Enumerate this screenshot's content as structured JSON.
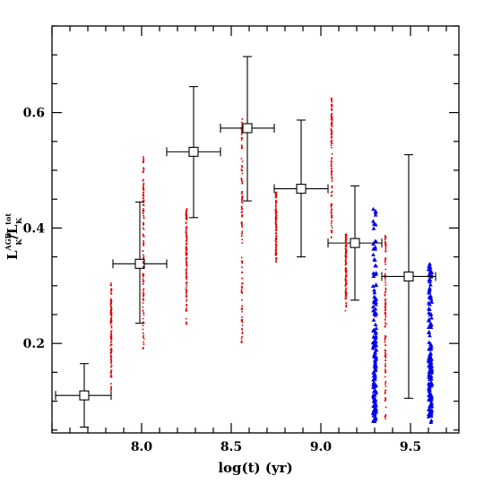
{
  "chart_data": {
    "type": "scatter",
    "title": "",
    "xlabel": "log(t) (yr)",
    "ylabel_main": "L",
    "ylabel_sub": "K",
    "ylabel_num_sup": "AGB",
    "ylabel_den_sup": "tot",
    "xlim": [
      7.5,
      9.77
    ],
    "ylim": [
      0.045,
      0.75
    ],
    "x_ticks": [
      {
        "value": 8.0,
        "label": "8.0"
      },
      {
        "value": 8.5,
        "label": "8.5"
      },
      {
        "value": 9.0,
        "label": "9.0"
      },
      {
        "value": 9.5,
        "label": "9.5"
      }
    ],
    "y_ticks": [
      {
        "value": 0.2,
        "label": "0.2"
      },
      {
        "value": 0.4,
        "label": "0.4"
      },
      {
        "value": 0.6,
        "label": "0.6"
      }
    ],
    "grid": false,
    "binned_points": {
      "marker": "open-square",
      "color": "#000000",
      "points": [
        {
          "x": 7.68,
          "y": 0.11,
          "xerr_low": 7.52,
          "xerr_high": 7.83,
          "yerr_low": 0.055,
          "yerr_high": 0.165
        },
        {
          "x": 7.99,
          "y": 0.338,
          "xerr_low": 7.84,
          "xerr_high": 8.14,
          "yerr_low": 0.235,
          "yerr_high": 0.445
        },
        {
          "x": 8.29,
          "y": 0.532,
          "xerr_low": 8.14,
          "xerr_high": 8.44,
          "yerr_low": 0.418,
          "yerr_high": 0.645
        },
        {
          "x": 8.59,
          "y": 0.573,
          "xerr_low": 8.44,
          "xerr_high": 8.74,
          "yerr_low": 0.447,
          "yerr_high": 0.697
        },
        {
          "x": 8.89,
          "y": 0.468,
          "xerr_low": 8.74,
          "xerr_high": 9.04,
          "yerr_low": 0.35,
          "yerr_high": 0.587
        },
        {
          "x": 9.19,
          "y": 0.374,
          "xerr_low": 9.04,
          "xerr_high": 9.34,
          "yerr_low": 0.275,
          "yerr_high": 0.473
        },
        {
          "x": 9.49,
          "y": 0.316,
          "xerr_low": 9.34,
          "xerr_high": 9.64,
          "yerr_low": 0.105,
          "yerr_high": 0.527
        }
      ]
    },
    "red_columns": {
      "color": "#e00000",
      "marker": "dot",
      "columns": [
        {
          "x": 7.83,
          "ymin": 0.115,
          "ymax": 0.305
        },
        {
          "x": 8.01,
          "ymin": 0.18,
          "ymax": 0.525
        },
        {
          "x": 8.25,
          "ymin": 0.232,
          "ymax": 0.435
        },
        {
          "x": 8.56,
          "ymin": 0.19,
          "ymax": 0.59
        },
        {
          "x": 8.75,
          "ymin": 0.34,
          "ymax": 0.465
        },
        {
          "x": 9.06,
          "ymin": 0.375,
          "ymax": 0.625
        },
        {
          "x": 9.14,
          "ymin": 0.255,
          "ymax": 0.39
        },
        {
          "x": 9.36,
          "ymin": 0.06,
          "ymax": 0.39
        }
      ]
    },
    "blue_columns": {
      "color": "#0000ee",
      "marker": "triangle",
      "columns": [
        {
          "x": 9.3,
          "ymin": 0.065,
          "ymax": 0.44
        },
        {
          "x": 9.61,
          "ymin": 0.062,
          "ymax": 0.34
        }
      ]
    }
  }
}
